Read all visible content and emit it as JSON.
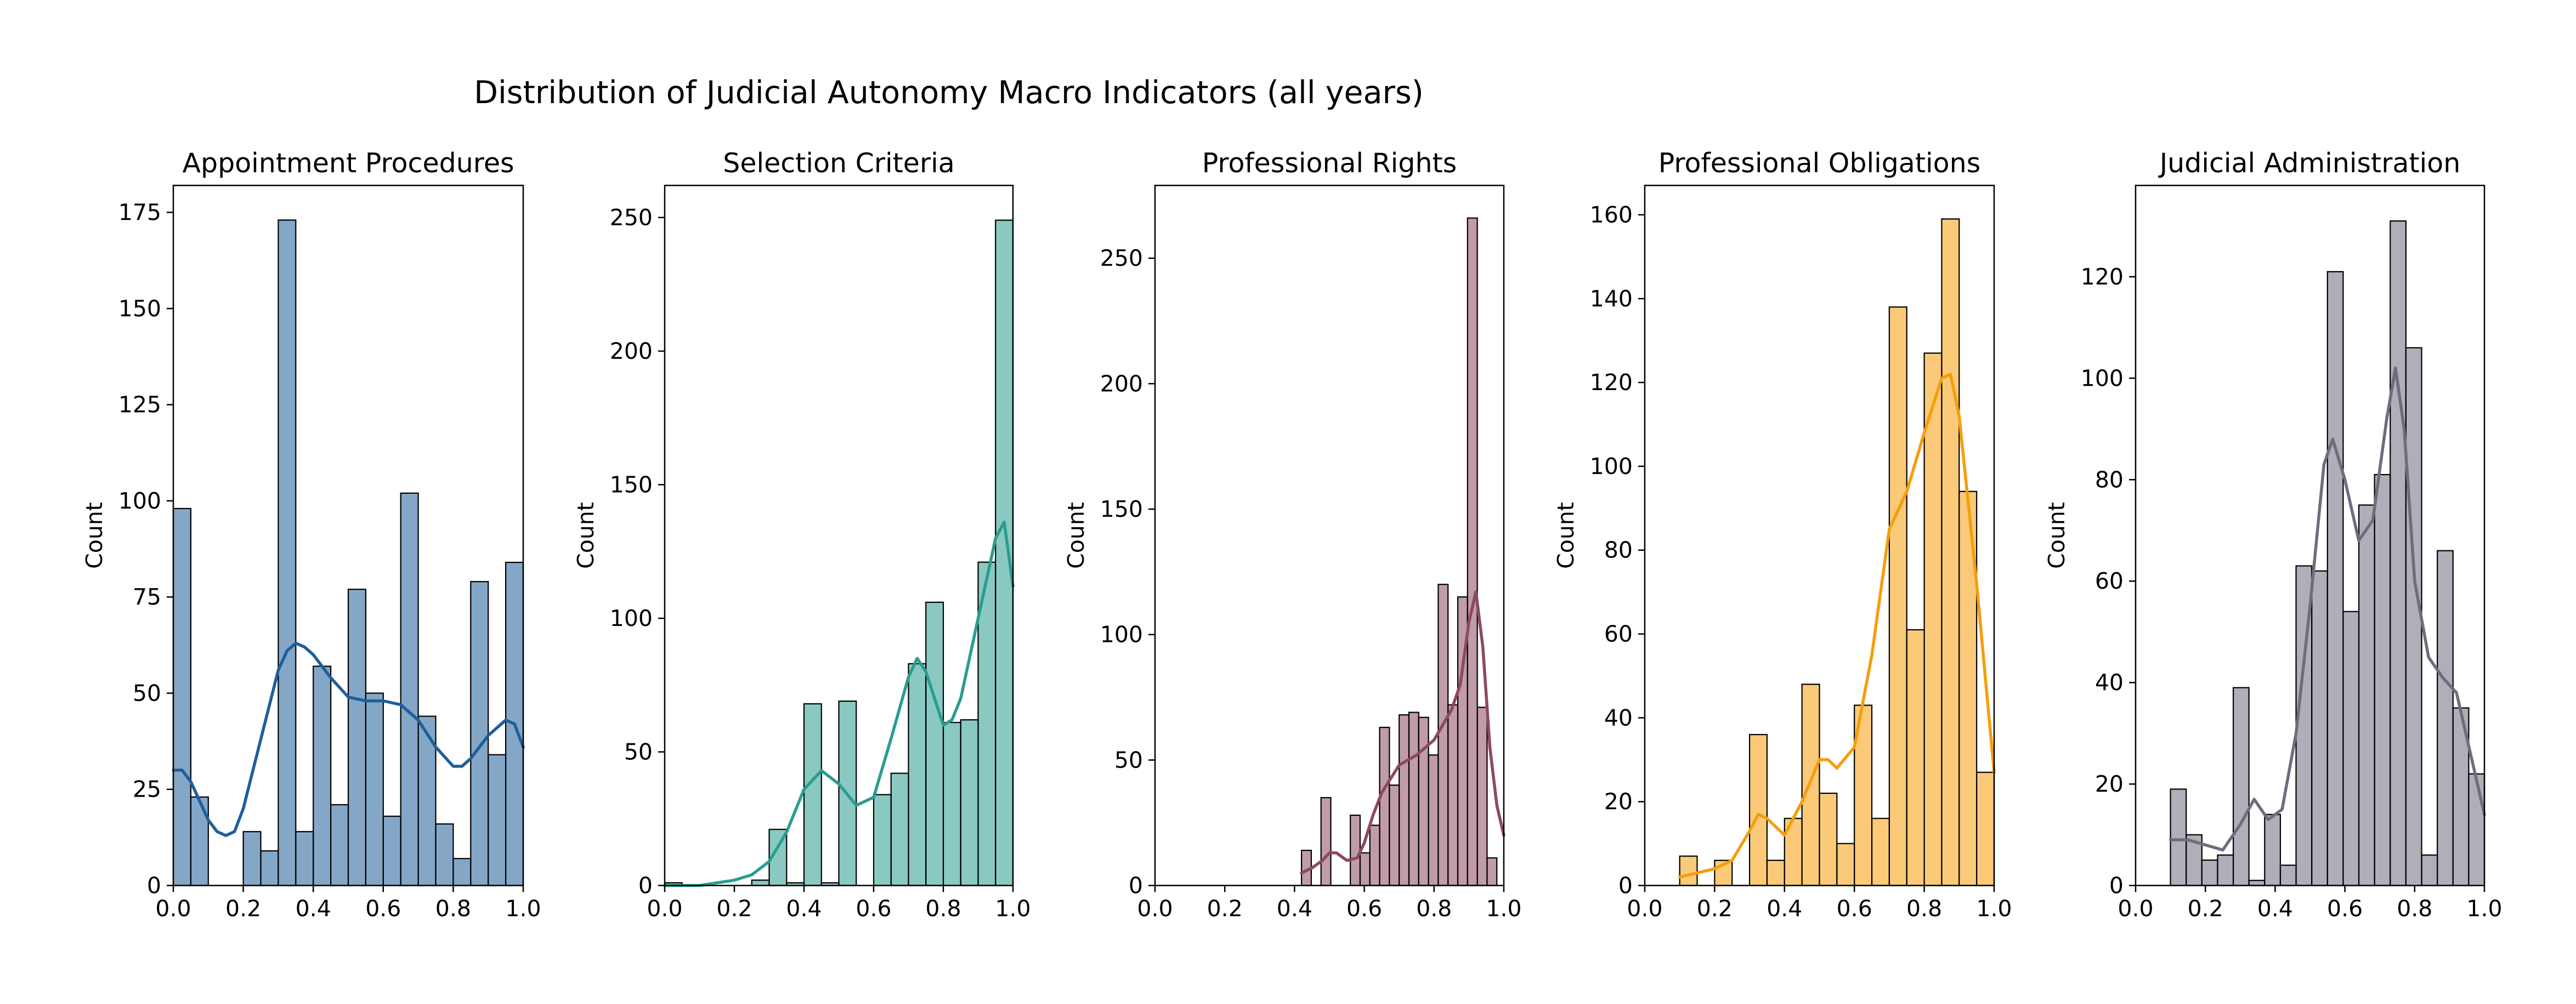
{
  "title": "Distribution of Judicial Autonomy Macro Indicators (all years)",
  "chart_data": [
    {
      "type": "bar",
      "title": "Appointment Procedures",
      "xlabel": "",
      "ylabel": "Count",
      "xlim": [
        0.0,
        1.0
      ],
      "ylim": [
        0,
        182
      ],
      "xticks": [
        "0.0",
        "0.2",
        "0.4",
        "0.6",
        "0.8",
        "1.0"
      ],
      "yticks": [
        "0",
        "25",
        "50",
        "75",
        "100",
        "125",
        "150",
        "175"
      ],
      "color": "#1f5f99",
      "bin_edges": [
        0.0,
        0.05,
        0.1,
        0.15,
        0.2,
        0.25,
        0.3,
        0.35,
        0.4,
        0.45,
        0.5,
        0.55,
        0.6,
        0.65,
        0.7,
        0.75,
        0.8,
        0.85,
        0.9,
        0.95,
        1.0
      ],
      "counts": [
        98,
        23,
        0,
        0,
        14,
        9,
        173,
        14,
        57,
        21,
        77,
        50,
        18,
        102,
        44,
        16,
        7,
        79,
        34,
        84
      ],
      "kde": {
        "x": [
          0.0,
          0.025,
          0.05,
          0.075,
          0.1,
          0.125,
          0.15,
          0.175,
          0.2,
          0.25,
          0.3,
          0.325,
          0.35,
          0.375,
          0.4,
          0.45,
          0.5,
          0.55,
          0.6,
          0.65,
          0.7,
          0.75,
          0.8,
          0.825,
          0.85,
          0.9,
          0.95,
          0.975,
          1.0
        ],
        "y": [
          30,
          30,
          27,
          22,
          17,
          14,
          13,
          14,
          20,
          38,
          56,
          61,
          63,
          62,
          60,
          54,
          49,
          48,
          48,
          47,
          43,
          36,
          31,
          31,
          33,
          39,
          43,
          42,
          36
        ]
      }
    },
    {
      "type": "bar",
      "title": "Selection Criteria",
      "xlabel": "",
      "ylabel": "Count",
      "xlim": [
        0.0,
        1.0
      ],
      "ylim": [
        0,
        262
      ],
      "xticks": [
        "0.0",
        "0.2",
        "0.4",
        "0.6",
        "0.8",
        "1.0"
      ],
      "yticks": [
        "0",
        "50",
        "100",
        "150",
        "200",
        "250"
      ],
      "color": "#2a9d8f",
      "bin_edges": [
        0.0,
        0.05,
        0.1,
        0.15,
        0.2,
        0.25,
        0.3,
        0.35,
        0.4,
        0.45,
        0.5,
        0.55,
        0.6,
        0.65,
        0.7,
        0.75,
        0.8,
        0.85,
        0.9,
        0.95,
        1.0
      ],
      "counts": [
        1,
        0,
        0,
        0,
        0,
        2,
        21,
        1,
        68,
        1,
        69,
        0,
        34,
        42,
        83,
        106,
        61,
        62,
        121,
        249
      ],
      "kde": {
        "x": [
          0.0,
          0.05,
          0.1,
          0.15,
          0.2,
          0.25,
          0.3,
          0.35,
          0.4,
          0.45,
          0.5,
          0.55,
          0.6,
          0.65,
          0.7,
          0.725,
          0.75,
          0.8,
          0.825,
          0.85,
          0.9,
          0.95,
          0.975,
          1.0
        ],
        "y": [
          0,
          0,
          0,
          1,
          2,
          4,
          9,
          20,
          36,
          43,
          38,
          30,
          33,
          55,
          78,
          85,
          80,
          60,
          62,
          70,
          100,
          130,
          136,
          112
        ]
      }
    },
    {
      "type": "bar",
      "title": "Professional Rights",
      "xlabel": "",
      "ylabel": "Count",
      "xlim": [
        0.0,
        1.0
      ],
      "ylim": [
        0,
        279
      ],
      "xticks": [
        "0.0",
        "0.2",
        "0.4",
        "0.6",
        "0.8",
        "1.0"
      ],
      "yticks": [
        "0",
        "50",
        "100",
        "150",
        "200",
        "250"
      ],
      "color": "#8c4a5e",
      "bin_edges": [
        0.42,
        0.448,
        0.476,
        0.504,
        0.532,
        0.56,
        0.588,
        0.616,
        0.644,
        0.672,
        0.7,
        0.728,
        0.756,
        0.784,
        0.812,
        0.84,
        0.868,
        0.896,
        0.924,
        0.952,
        0.98,
        1.0
      ],
      "counts": [
        14,
        0,
        35,
        0,
        0,
        28,
        13,
        24,
        63,
        40,
        68,
        69,
        67,
        52,
        120,
        72,
        115,
        266,
        71,
        11,
        0
      ],
      "kde": {
        "x": [
          0.42,
          0.45,
          0.48,
          0.5,
          0.52,
          0.55,
          0.58,
          0.6,
          0.625,
          0.65,
          0.7,
          0.75,
          0.8,
          0.85,
          0.875,
          0.9,
          0.92,
          0.94,
          0.96,
          0.98,
          1.0
        ],
        "y": [
          5,
          7,
          10,
          13,
          13,
          10,
          11,
          17,
          28,
          37,
          48,
          52,
          58,
          70,
          80,
          105,
          117,
          95,
          55,
          32,
          20
        ]
      }
    },
    {
      "type": "bar",
      "title": "Professional Obligations",
      "xlabel": "",
      "ylabel": "Count",
      "xlim": [
        0.0,
        1.0
      ],
      "ylim": [
        0,
        167
      ],
      "xticks": [
        "0.0",
        "0.2",
        "0.4",
        "0.6",
        "0.8",
        "1.0"
      ],
      "yticks": [
        "0",
        "20",
        "40",
        "60",
        "80",
        "100",
        "120",
        "140",
        "160"
      ],
      "color": "#f59e0b",
      "bin_edges": [
        0.0,
        0.05,
        0.1,
        0.15,
        0.2,
        0.25,
        0.3,
        0.35,
        0.4,
        0.45,
        0.5,
        0.55,
        0.6,
        0.65,
        0.7,
        0.75,
        0.8,
        0.85,
        0.9,
        0.95,
        1.0
      ],
      "counts": [
        0,
        0,
        7,
        0,
        6,
        0,
        36,
        6,
        16,
        48,
        22,
        10,
        43,
        16,
        138,
        61,
        127,
        159,
        94,
        27
      ],
      "kde": {
        "x": [
          0.1,
          0.15,
          0.2,
          0.25,
          0.3,
          0.325,
          0.35,
          0.4,
          0.45,
          0.5,
          0.525,
          0.55,
          0.6,
          0.65,
          0.7,
          0.75,
          0.8,
          0.85,
          0.875,
          0.9,
          0.95,
          1.0
        ],
        "y": [
          2,
          3,
          4,
          6,
          13,
          17,
          16,
          12,
          20,
          30,
          30,
          28,
          33,
          55,
          85,
          94,
          108,
          121,
          122,
          112,
          72,
          27
        ]
      }
    },
    {
      "type": "bar",
      "title": "Judicial Administration",
      "xlabel": "",
      "ylabel": "Count",
      "xlim": [
        0.0,
        1.0
      ],
      "ylim": [
        0,
        138
      ],
      "xticks": [
        "0.0",
        "0.2",
        "0.4",
        "0.6",
        "0.8",
        "1.0"
      ],
      "yticks": [
        "0",
        "20",
        "40",
        "60",
        "80",
        "100",
        "120"
      ],
      "color": "#706c7e",
      "bin_edges": [
        0.1,
        0.145,
        0.19,
        0.235,
        0.28,
        0.325,
        0.37,
        0.415,
        0.46,
        0.505,
        0.55,
        0.595,
        0.64,
        0.685,
        0.73,
        0.775,
        0.82,
        0.865,
        0.91,
        0.955,
        1.0
      ],
      "counts": [
        19,
        10,
        5,
        6,
        39,
        1,
        14,
        4,
        63,
        62,
        121,
        54,
        75,
        81,
        131,
        106,
        6,
        66,
        35,
        22
      ],
      "kde": {
        "x": [
          0.1,
          0.15,
          0.2,
          0.25,
          0.3,
          0.34,
          0.38,
          0.42,
          0.46,
          0.5,
          0.54,
          0.565,
          0.6,
          0.64,
          0.68,
          0.72,
          0.745,
          0.77,
          0.8,
          0.84,
          0.88,
          0.92,
          0.96,
          1.0
        ],
        "y": [
          9,
          9,
          8,
          7,
          12,
          17,
          13,
          15,
          30,
          55,
          83,
          88,
          80,
          68,
          72,
          92,
          102,
          90,
          60,
          45,
          41,
          38,
          26,
          14
        ]
      }
    }
  ]
}
